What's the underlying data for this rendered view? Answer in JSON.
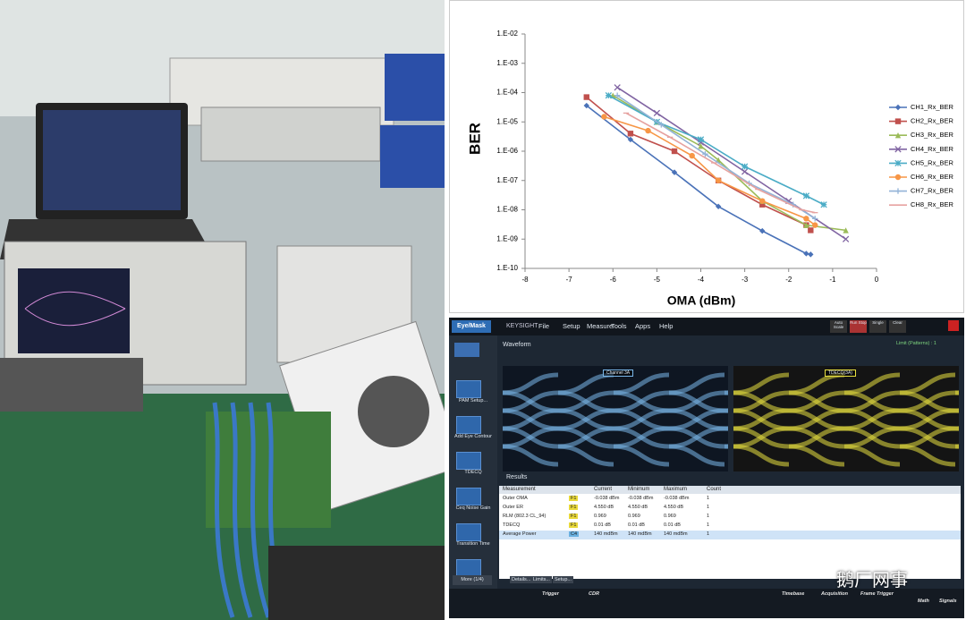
{
  "chart_data": {
    "type": "line",
    "ylabel": "BER",
    "xlabel": "OMA (dBm)",
    "yscale": "log",
    "legend_position": "right",
    "xlim": [
      -8,
      0
    ],
    "xticks": [
      -8,
      -7,
      -6,
      -5,
      -4,
      -3,
      -2,
      -1,
      0
    ],
    "ylim": [
      1e-10,
      0.01
    ],
    "yticks": [
      {
        "value": 0.01,
        "label": "1.E-02"
      },
      {
        "value": 0.001,
        "label": "1.E-03"
      },
      {
        "value": 0.0001,
        "label": "1.E-04"
      },
      {
        "value": 1e-05,
        "label": "1.E-05"
      },
      {
        "value": 1e-06,
        "label": "1.E-06"
      },
      {
        "value": 1e-07,
        "label": "1.E-07"
      },
      {
        "value": 1e-08,
        "label": "1.E-08"
      },
      {
        "value": 1e-09,
        "label": "1.E-09"
      },
      {
        "value": 1e-10,
        "label": "1.E-10"
      }
    ],
    "series": [
      {
        "name": "CH1_Rx_BER",
        "color": "#4a72b8",
        "marker": "diamond",
        "x": [
          -6.6,
          -5.6,
          -4.6,
          -3.6,
          -2.6,
          -1.6,
          -1.5
        ],
        "values": [
          3.6e-05,
          2.5e-06,
          1.9e-07,
          1.3e-08,
          1.9e-09,
          3.2e-10,
          3e-10
        ]
      },
      {
        "name": "CH2_Rx_BER",
        "color": "#c0504d",
        "marker": "square",
        "x": [
          -6.6,
          -5.6,
          -4.6,
          -3.6,
          -2.6,
          -1.6,
          -1.5
        ],
        "values": [
          7e-05,
          4e-06,
          1e-06,
          1e-07,
          1.5e-08,
          3e-09,
          2e-09
        ]
      },
      {
        "name": "CH3_Rx_BER",
        "color": "#9bbb59",
        "marker": "triangle",
        "x": [
          -6.0,
          -5.0,
          -4.0,
          -3.6,
          -2.6,
          -1.6,
          -0.7
        ],
        "values": [
          8e-05,
          1e-05,
          1.5e-06,
          5e-07,
          2e-08,
          3e-09,
          2e-09
        ]
      },
      {
        "name": "CH4_Rx_BER",
        "color": "#8064a2",
        "marker": "x",
        "x": [
          -5.9,
          -5.0,
          -4.0,
          -3.0,
          -2.0,
          -0.7
        ],
        "values": [
          0.00015,
          2e-05,
          2e-06,
          2e-07,
          2e-08,
          1e-09
        ]
      },
      {
        "name": "CH5_Rx_BER",
        "color": "#4bacc6",
        "marker": "asterisk",
        "x": [
          -6.1,
          -5.0,
          -4.0,
          -3.0,
          -1.6,
          -1.2
        ],
        "values": [
          8e-05,
          1e-05,
          2.5e-06,
          3e-07,
          3e-08,
          1.5e-08
        ]
      },
      {
        "name": "CH6_Rx_BER",
        "color": "#f79646",
        "marker": "circle",
        "x": [
          -6.2,
          -5.2,
          -4.2,
          -3.6,
          -2.6,
          -1.6,
          -1.4
        ],
        "values": [
          1.5e-05,
          5e-06,
          7e-07,
          1e-07,
          2e-08,
          5e-09,
          3e-09
        ]
      },
      {
        "name": "CH7_Rx_BER",
        "color": "#93b3d7",
        "marker": "plus",
        "x": [
          -5.9,
          -4.9,
          -3.9,
          -2.9,
          -1.9,
          -1.4
        ],
        "values": [
          8e-05,
          8e-06,
          8e-07,
          8e-08,
          1.5e-08,
          5e-09
        ]
      },
      {
        "name": "CH8_Rx_BER",
        "color": "#e6a2a0",
        "marker": "dash",
        "x": [
          -5.7,
          -4.7,
          -3.7,
          -2.7,
          -1.7,
          -1.4
        ],
        "values": [
          2e-05,
          3e-06,
          4e-07,
          5e-08,
          1e-08,
          8e-09
        ]
      }
    ]
  },
  "scope": {
    "brand": "KEYSIGHT",
    "mode": "Eye/Mask",
    "menu": [
      "File",
      "Setup",
      "Measure",
      "Tools",
      "Apps",
      "Help"
    ],
    "toolbar": [
      "Auto Scale",
      "Run Stop",
      "Single",
      "Clear"
    ],
    "sidebar": [
      "PAM Setup...",
      "Add Eye Contour",
      "TDECQ",
      "Ceq Noise Gain",
      "Transition Time",
      "Outer OMA"
    ],
    "more": "More (1/4)",
    "waveform_tab": "Waveform",
    "limit": "Limit (Patterns) : 1",
    "eye_labels": [
      "Channel 3A",
      "TDECQ(3A)"
    ],
    "results_tab": "Results",
    "table": {
      "header": [
        "Measurement",
        "Current",
        "Minimum",
        "Maximum",
        "Count"
      ],
      "rows": [
        [
          "Outer OMA",
          "F1",
          "-0.038 dBm",
          "-0.038 dBm",
          "-0.038 dBm",
          "1"
        ],
        [
          "Outer ER",
          "F1",
          "4.550 dB",
          "4.550 dB",
          "4.550 dB",
          "1"
        ],
        [
          "RLM (802.3 CL_94)",
          "F1",
          "0.969",
          "0.969",
          "0.969",
          "1"
        ],
        [
          "TDECQ",
          "F1",
          "0.01 dB",
          "0.01 dB",
          "0.01 dB",
          "1"
        ],
        [
          "Average Power",
          "C4",
          "140 mdBm",
          "140 mdBm",
          "140 mdBm",
          "1"
        ]
      ]
    },
    "buttons": [
      "Details...",
      "Limits...",
      "Setup..."
    ],
    "footer": [
      "Trigger",
      "CDR",
      "Timebase",
      "Acquisition",
      "Frame Trigger",
      "Math",
      "Signals"
    ]
  },
  "watermark": "鹅厂网事"
}
